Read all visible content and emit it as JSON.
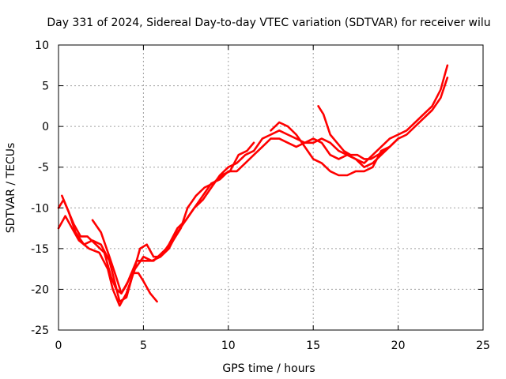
{
  "chart_data": {
    "type": "line",
    "title": "Day 331 of 2024, Sidereal Day-to-day VTEC variation (SDTVAR) for receiver wilu",
    "xlabel": "GPS time / hours",
    "ylabel": "SDTVAR / TECUs",
    "xlim": [
      0,
      25
    ],
    "ylim": [
      -25,
      10
    ],
    "x_ticks": [
      0,
      5,
      10,
      15,
      20,
      25
    ],
    "y_ticks": [
      -25,
      -20,
      -15,
      -10,
      -5,
      0,
      5,
      10
    ],
    "x_tick_labels": [
      "0",
      "5",
      "10",
      "15",
      "20",
      "25"
    ],
    "y_tick_labels": [
      "-25",
      "-20",
      "-15",
      "-10",
      "-5",
      "0",
      "5",
      "10"
    ],
    "grid": true,
    "legend": false,
    "series_color": "#ff0000",
    "series": [
      {
        "name": "track-1",
        "x": [
          0.0,
          0.3,
          0.6,
          1.0,
          1.5,
          2.0,
          2.5,
          3.0,
          3.3,
          3.6,
          4.0,
          4.4,
          4.8,
          5.2,
          5.6,
          6.0,
          6.5,
          7.0,
          7.5,
          8.0,
          8.5,
          9.0,
          9.5,
          10.0,
          10.5,
          11.0,
          11.5,
          12.0,
          12.5,
          13.0,
          13.5,
          14.0,
          14.5,
          15.0,
          15.5,
          16.0,
          16.5,
          17.0,
          17.5,
          18.0,
          18.5,
          19.0,
          19.5,
          20.0,
          20.5,
          21.0,
          21.5,
          22.0,
          22.5,
          22.9
        ],
        "y": [
          -10.0,
          -9.0,
          -10.5,
          -13.0,
          -14.5,
          -14.0,
          -14.5,
          -16.5,
          -19.0,
          -21.5,
          -21.0,
          -18.0,
          -15.0,
          -14.5,
          -16.0,
          -16.0,
          -15.0,
          -13.0,
          -11.5,
          -10.0,
          -9.0,
          -7.5,
          -6.0,
          -5.0,
          -4.5,
          -3.5,
          -3.0,
          -1.5,
          -1.0,
          -0.5,
          -1.0,
          -1.5,
          -2.0,
          -2.0,
          -1.5,
          -2.0,
          -3.0,
          -3.5,
          -4.0,
          -4.5,
          -3.5,
          -2.5,
          -1.5,
          -1.0,
          -0.5,
          0.5,
          1.5,
          2.5,
          4.5,
          7.5
        ]
      },
      {
        "name": "track-2",
        "x": [
          0.0,
          0.4,
          0.8,
          1.2,
          1.8,
          2.4,
          2.9,
          3.2,
          3.6,
          4.0,
          4.5,
          5.0,
          5.5,
          6.0,
          6.5,
          7.0,
          7.5,
          8.0,
          8.5,
          9.0,
          9.5,
          10.0,
          10.5,
          11.0,
          11.5,
          12.0,
          12.5,
          13.0,
          13.5,
          14.0,
          14.5,
          15.0,
          15.5,
          16.0,
          16.5,
          17.0,
          17.5,
          18.0,
          18.5,
          19.0,
          19.5,
          20.0,
          20.5,
          21.0,
          21.5,
          22.0,
          22.5,
          22.9
        ],
        "y": [
          -12.5,
          -11.0,
          -12.5,
          -14.0,
          -15.0,
          -15.5,
          -17.5,
          -20.0,
          -22.0,
          -20.5,
          -17.5,
          -16.0,
          -16.5,
          -16.0,
          -14.5,
          -12.5,
          -11.5,
          -10.0,
          -8.5,
          -7.0,
          -6.5,
          -5.5,
          -5.5,
          -4.5,
          -3.5,
          -2.5,
          -1.5,
          -1.5,
          -2.0,
          -2.5,
          -2.0,
          -1.5,
          -2.0,
          -3.5,
          -4.0,
          -3.5,
          -4.0,
          -5.0,
          -4.5,
          -3.5,
          -2.5,
          -1.5,
          -1.0,
          0.0,
          1.0,
          2.0,
          3.5,
          6.0
        ]
      },
      {
        "name": "track-3",
        "x": [
          0.2,
          0.5,
          0.9,
          1.3,
          1.7,
          2.2,
          2.7,
          3.1,
          3.4,
          3.7,
          4.1,
          4.6,
          5.1,
          5.6,
          6.1,
          6.6,
          7.2,
          7.6,
          8.1,
          8.6,
          9.1,
          9.6,
          10.1,
          10.6,
          11.1,
          11.5
        ],
        "y": [
          -8.5,
          -10.0,
          -12.0,
          -13.5,
          -13.5,
          -14.5,
          -15.5,
          -18.5,
          -20.0,
          -20.5,
          -19.0,
          -16.5,
          -16.5,
          -16.5,
          -15.5,
          -14.5,
          -12.5,
          -10.0,
          -8.5,
          -7.5,
          -7.0,
          -6.0,
          -5.5,
          -3.5,
          -3.0,
          -2.0
        ]
      },
      {
        "name": "track-4",
        "x": [
          2.0,
          2.5,
          3.0,
          3.4,
          3.7,
          4.0,
          4.3,
          4.7,
          5.0,
          5.4,
          5.8
        ],
        "y": [
          -11.5,
          -13.0,
          -16.0,
          -18.5,
          -20.5,
          -19.5,
          -18.0,
          -18.0,
          -19.0,
          -20.5,
          -21.5
        ]
      },
      {
        "name": "track-5",
        "x": [
          12.5,
          13.0,
          13.5,
          14.0,
          14.5,
          15.0,
          15.5,
          16.0,
          16.5,
          17.0,
          17.5,
          18.0,
          18.5,
          19.0,
          19.5,
          20.0
        ],
        "y": [
          -0.5,
          0.5,
          0.0,
          -1.0,
          -2.5,
          -4.0,
          -4.5,
          -5.5,
          -6.0,
          -6.0,
          -5.5,
          -5.5,
          -5.0,
          -3.0,
          -2.5,
          -1.5
        ]
      },
      {
        "name": "track-6",
        "x": [
          15.3,
          15.6,
          16.0,
          16.4,
          16.8,
          17.2,
          17.6,
          18.0,
          18.4,
          18.8,
          19.2
        ],
        "y": [
          2.5,
          1.5,
          -1.0,
          -2.0,
          -3.0,
          -3.5,
          -3.5,
          -4.0,
          -4.0,
          -3.5,
          -3.0
        ]
      }
    ]
  }
}
